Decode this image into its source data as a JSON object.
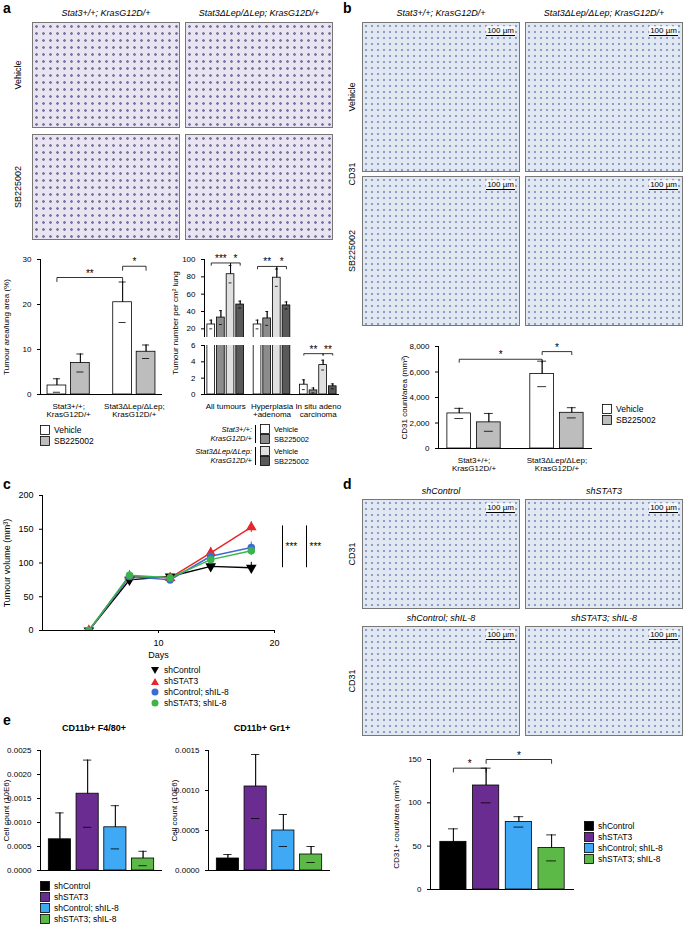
{
  "figure": {
    "panel_labels": [
      "a",
      "b",
      "c",
      "d",
      "e"
    ],
    "image_panels": [
      {
        "columns": [
          "Stat3+/+; KrasG12D/+",
          "Stat3ΔLep/ΔLep; KrasG12D/+"
        ],
        "rows": [
          "Vehicle",
          "SB225002"
        ]
      },
      {
        "columns": [
          "Stat3+/+; KrasG12D/+",
          "Stat3ΔLep/ΔLep; KrasG12D/+"
        ],
        "rows": [
          "Vehicle",
          "SB225002"
        ],
        "stain": "CD31",
        "scale_bar": "100 µm"
      },
      {
        "cells": [
          "shControl",
          "shSTAT3",
          "shControl; shIL-8",
          "shSTAT3; shIL-8"
        ],
        "stain": "CD31",
        "scale_bar": "100 µm"
      }
    ]
  },
  "chart_data": [
    {
      "type": "bar",
      "categories": [
        "Stat3+/+;\nKrasG12D/+",
        "Stat3ΔLep/ΔLep;\nKrasG12D/+"
      ],
      "series": [
        {
          "name": "Vehicle",
          "color": "#ffffff",
          "values": [
            2,
            20.5
          ],
          "errors": [
            1.5,
            4.5
          ]
        },
        {
          "name": "SB225002",
          "color": "#bdbdbd",
          "values": [
            7,
            9.5
          ],
          "errors": [
            2,
            1.5
          ]
        }
      ],
      "ylabel": "Tumour area/lung area (%)",
      "ylim": [
        0,
        30
      ],
      "yticks": [
        0,
        10,
        20,
        30
      ],
      "annotations": [
        {
          "text": "**",
          "from": [
            0,
            0
          ],
          "to": [
            1,
            0
          ],
          "y": 26
        },
        {
          "text": "*",
          "from": [
            1,
            0
          ],
          "to": [
            1,
            1
          ],
          "y": 28.5
        }
      ],
      "legend": "bottom"
    },
    {
      "type": "bar",
      "categories": [
        "All tumours",
        "Hyperplasia\n+adenoma",
        "In situ adeno\ncarcinoma"
      ],
      "series": [
        {
          "name": "Vehicle",
          "group": "Stat3+/+:\nKrasG12D/+",
          "color": "#ffffff",
          "values": [
            25,
            25,
            1.2
          ],
          "errors": [
            5,
            5,
            0.6
          ]
        },
        {
          "name": "SB225002",
          "group": "Stat3+/+:\nKrasG12D/+",
          "color": "#8c8c8c",
          "values": [
            33,
            32,
            0.5
          ],
          "errors": [
            8,
            8,
            0.3
          ]
        },
        {
          "name": "Vehicle",
          "group": "Stat3ΔLep/ΔLep:\nKrasG12D/+",
          "color": "#e0e0e0",
          "values": [
            83,
            79,
            3.6
          ],
          "errors": [
            10,
            10,
            0.6
          ]
        },
        {
          "name": "SB225002",
          "group": "Stat3ΔLep/ΔLep:\nKrasG12D/+",
          "color": "#595959",
          "values": [
            48,
            47,
            1
          ],
          "errors": [
            4,
            4,
            0.3
          ]
        }
      ],
      "ylabel": "Tumour number per cm² lung",
      "segments": [
        {
          "ylim": [
            0,
            6
          ],
          "yticks": [
            0,
            2,
            4,
            6
          ]
        },
        {
          "ylim": [
            10,
            100
          ],
          "yticks": [
            20,
            40,
            60,
            80,
            100
          ]
        }
      ],
      "annotations": [
        {
          "text": "***",
          "from": [
            0,
            0
          ],
          "to": [
            0,
            2
          ],
          "y": 96
        },
        {
          "text": "*",
          "from": [
            0,
            2
          ],
          "to": [
            0,
            3
          ],
          "y": 96
        },
        {
          "text": "**",
          "from": [
            1,
            0
          ],
          "to": [
            1,
            2
          ],
          "y": 92
        },
        {
          "text": "*",
          "from": [
            1,
            2
          ],
          "to": [
            1,
            3
          ],
          "y": 92
        },
        {
          "text": "**",
          "from": [
            2,
            0
          ],
          "to": [
            2,
            2
          ],
          "y": 5
        },
        {
          "text": "**",
          "from": [
            2,
            2
          ],
          "to": [
            2,
            3
          ],
          "y": 5
        }
      ],
      "legend": "bottom"
    },
    {
      "type": "bar",
      "categories": [
        "Stat3+/+;\nKrasG12D/+",
        "Stat3ΔLep/ΔLep;\nKrasG12D/+"
      ],
      "series": [
        {
          "name": "Vehicle",
          "color": "#ffffff",
          "values": [
            2750,
            5850
          ],
          "errors": [
            400,
            1000
          ]
        },
        {
          "name": "SB225002",
          "color": "#bdbdbd",
          "values": [
            2050,
            2800
          ],
          "errors": [
            700,
            400
          ]
        }
      ],
      "ylabel": "CD31 count/area (mm²)",
      "ylim": [
        0,
        8000
      ],
      "yticks": [
        0,
        {
          "value": 2000,
          "label": "2,000"
        },
        {
          "value": 4000,
          "label": "4,000"
        },
        {
          "value": 6000,
          "label": "6,000"
        },
        {
          "value": 8000,
          "label": "8,000"
        }
      ],
      "annotations": [
        {
          "text": "*",
          "from": [
            0,
            0
          ],
          "to": [
            1,
            0
          ],
          "y": 7000
        },
        {
          "text": "*",
          "from": [
            1,
            0
          ],
          "to": [
            1,
            1
          ],
          "y": 7600
        }
      ],
      "legend": "right"
    },
    {
      "type": "line",
      "x": [
        4,
        7.5,
        11,
        14.5,
        18
      ],
      "series": [
        {
          "name": "shControl",
          "color": "#000000",
          "marker": "triangle-down",
          "values": [
            0,
            75,
            80,
            95,
            93
          ],
          "errors": [
            0,
            6,
            5,
            8,
            8
          ]
        },
        {
          "name": "shSTAT3",
          "color": "#e8262a",
          "marker": "triangle-up",
          "values": [
            0,
            80,
            78,
            115,
            153
          ],
          "errors": [
            0,
            8,
            6,
            8,
            8
          ]
        },
        {
          "name": "shControl; shIL-8",
          "color": "#3c6ed2",
          "marker": "circle",
          "values": [
            0,
            80,
            75,
            110,
            123
          ],
          "errors": [
            0,
            7,
            5,
            8,
            8
          ]
        },
        {
          "name": "shSTAT3; shIL-8",
          "color": "#3cb44b",
          "marker": "circle",
          "values": [
            0,
            82,
            78,
            105,
            118
          ],
          "errors": [
            0,
            7,
            5,
            7,
            7
          ]
        }
      ],
      "xlabel": "Days",
      "ylabel": "Tumour volume (mm³)",
      "xlim": [
        0,
        20
      ],
      "xticks": [
        10,
        20
      ],
      "ylim": [
        0,
        200
      ],
      "yticks": [
        0,
        50,
        100,
        150,
        200
      ],
      "annotations": [
        {
          "text": "***",
          "y1": 155,
          "y2": 93
        },
        {
          "text": "***",
          "y1": 155,
          "y2": 93
        }
      ],
      "legend": "bottom"
    },
    {
      "type": "bar",
      "categories": [
        "shControl",
        "shSTAT3",
        "shControl; shIL-8",
        "shSTAT3; shIL-8"
      ],
      "colors": [
        "#000000",
        "#6b2c91",
        "#3fa9f5",
        "#5cb947"
      ],
      "values": [
        55,
        120,
        78,
        48
      ],
      "errors": [
        15,
        20,
        6,
        15
      ],
      "ylabel": "CD31+ count/area (mm²)",
      "ylim": [
        0,
        150
      ],
      "yticks": [
        0,
        50,
        100,
        150
      ],
      "annotations": [
        {
          "text": "*",
          "from": 0,
          "to": 1,
          "y": 140
        },
        {
          "text": "*",
          "from": 1,
          "to": 3,
          "y": 150
        }
      ],
      "tick_labels": "y",
      "legend": "right"
    },
    {
      "type": "bar",
      "title": "CD11b+ F4/80+",
      "categories": [
        "shControl",
        "shSTAT3",
        "shControl; shIL-8",
        "shSTAT3; shIL-8"
      ],
      "colors": [
        "#000000",
        "#6b2c91",
        "#3fa9f5",
        "#5cb947"
      ],
      "values": [
        0.00065,
        0.0016,
        0.0009,
        0.00025
      ],
      "errors": [
        0.00055,
        0.0007,
        0.00045,
        0.00015
      ],
      "ylabel": "Cell count (10E6)",
      "ylim": [
        0,
        0.0025
      ],
      "yticks": [
        {
          "value": 0,
          "label": "0.0000"
        },
        {
          "value": 0.0005,
          "label": "0.0005"
        },
        {
          "value": 0.001,
          "label": "0.0010"
        },
        {
          "value": 0.0015,
          "label": "0.0015"
        },
        {
          "value": 0.002,
          "label": "0.0020"
        },
        {
          "value": 0.0025,
          "label": "0.0025"
        }
      ],
      "tick_labels": "y",
      "legend": "bottom"
    },
    {
      "type": "bar",
      "title": "CD11b+ Gr1+",
      "categories": [
        "shControl",
        "shSTAT3",
        "shControl; shIL-8",
        "shSTAT3; shIL-8"
      ],
      "colors": [
        "#000000",
        "#6b2c91",
        "#3fa9f5",
        "#5cb947"
      ],
      "values": [
        0.00015,
        0.00105,
        0.0005,
        0.0002
      ],
      "errors": [
        5e-05,
        0.0004,
        0.0002,
        0.0001
      ],
      "ylabel": "Cell count (10E6)",
      "ylim": [
        0,
        0.0015
      ],
      "yticks": [
        {
          "value": 0,
          "label": "0.0000"
        },
        {
          "value": 0.0005,
          "label": "0.0005"
        },
        {
          "value": 0.001,
          "label": "0.0010"
        },
        {
          "value": 0.0015,
          "label": "0.0015"
        }
      ],
      "tick_labels": "y"
    }
  ]
}
